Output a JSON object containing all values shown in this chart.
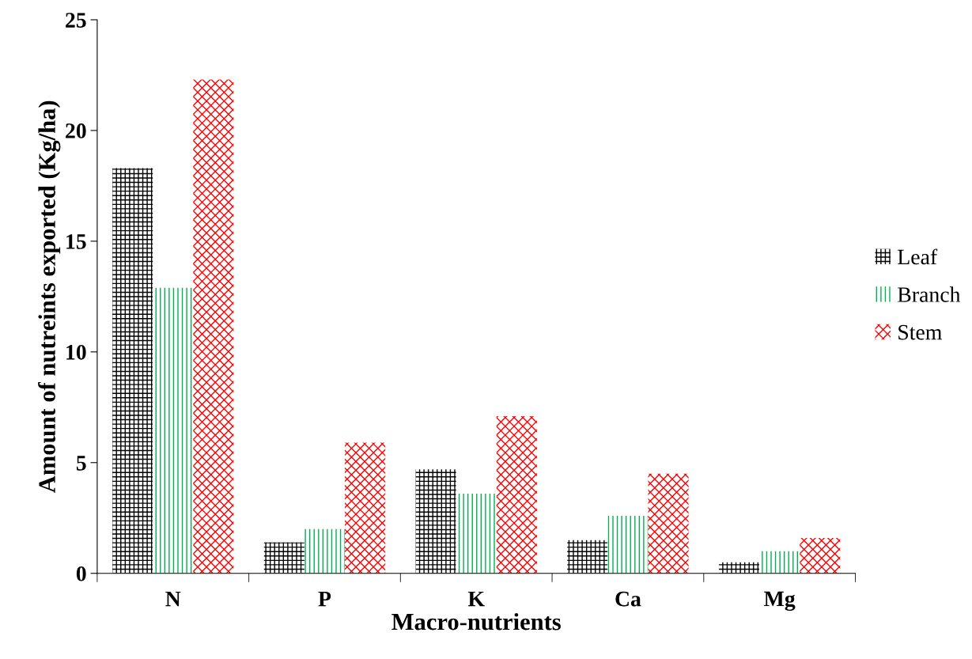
{
  "chart_data": {
    "type": "bar",
    "xlabel": "Macro-nutrients",
    "ylabel": "Amount of nutreints exported (Kg/ha)",
    "categories": [
      "N",
      "P",
      "K",
      "Ca",
      "Mg"
    ],
    "series": [
      {
        "name": "Leaf",
        "color": "#000000",
        "values": [
          18.3,
          1.4,
          4.7,
          1.5,
          0.5
        ]
      },
      {
        "name": "Branch",
        "color": "#00b050",
        "values": [
          12.9,
          2.0,
          3.6,
          2.6,
          1.0
        ]
      },
      {
        "name": "Stem",
        "color": "#ff0000",
        "values": [
          22.3,
          5.9,
          7.1,
          4.5,
          1.6
        ]
      }
    ],
    "ylim": [
      0,
      25
    ],
    "yticks": [
      0,
      5,
      10,
      15,
      20,
      25
    ],
    "grid": false,
    "legend": "right"
  }
}
